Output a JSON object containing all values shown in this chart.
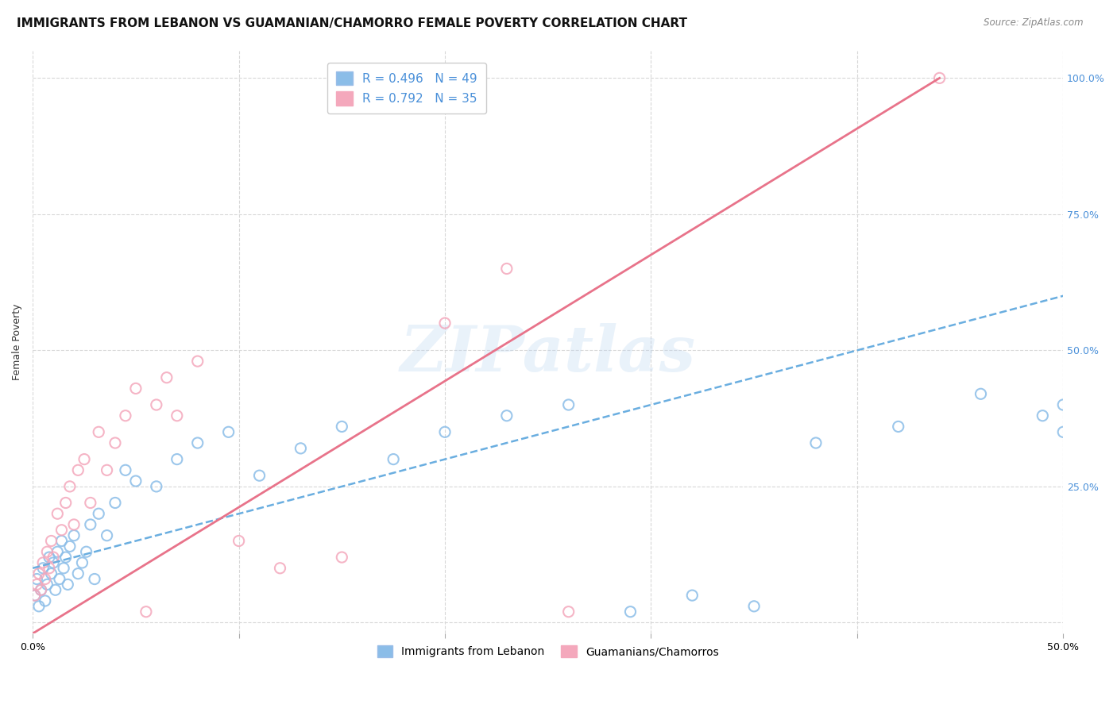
{
  "title": "IMMIGRANTS FROM LEBANON VS GUAMANIAN/CHAMORRO FEMALE POVERTY CORRELATION CHART",
  "source": "Source: ZipAtlas.com",
  "ylabel": "Female Poverty",
  "xlim": [
    0.0,
    0.5
  ],
  "ylim": [
    -0.02,
    1.05
  ],
  "legend_label1": "R = 0.496   N = 49",
  "legend_label2": "R = 0.792   N = 35",
  "legend_label1_short": "Immigrants from Lebanon",
  "legend_label2_short": "Guamanians/Chamorros",
  "color_blue": "#8bbde8",
  "color_pink": "#f4a8bc",
  "color_blue_line": "#6aaee0",
  "color_pink_line": "#e8738a",
  "color_blue_text": "#4a90d9",
  "color_pink_text": "#e87090",
  "watermark": "ZIPatlas",
  "blue_scatter_x": [
    0.001,
    0.002,
    0.003,
    0.004,
    0.005,
    0.006,
    0.007,
    0.008,
    0.009,
    0.01,
    0.011,
    0.012,
    0.013,
    0.014,
    0.015,
    0.016,
    0.017,
    0.018,
    0.02,
    0.022,
    0.024,
    0.026,
    0.028,
    0.03,
    0.032,
    0.036,
    0.04,
    0.045,
    0.05,
    0.06,
    0.07,
    0.08,
    0.095,
    0.11,
    0.13,
    0.15,
    0.175,
    0.2,
    0.23,
    0.26,
    0.29,
    0.32,
    0.35,
    0.38,
    0.42,
    0.46,
    0.49,
    0.5,
    0.5
  ],
  "blue_scatter_y": [
    0.05,
    0.08,
    0.03,
    0.06,
    0.1,
    0.04,
    0.07,
    0.12,
    0.09,
    0.11,
    0.06,
    0.13,
    0.08,
    0.15,
    0.1,
    0.12,
    0.07,
    0.14,
    0.16,
    0.09,
    0.11,
    0.13,
    0.18,
    0.08,
    0.2,
    0.16,
    0.22,
    0.28,
    0.26,
    0.25,
    0.3,
    0.33,
    0.35,
    0.27,
    0.32,
    0.36,
    0.3,
    0.35,
    0.38,
    0.4,
    0.02,
    0.05,
    0.03,
    0.33,
    0.36,
    0.42,
    0.38,
    0.35,
    0.4
  ],
  "pink_scatter_x": [
    0.001,
    0.002,
    0.003,
    0.004,
    0.005,
    0.006,
    0.007,
    0.008,
    0.009,
    0.01,
    0.012,
    0.014,
    0.016,
    0.018,
    0.02,
    0.022,
    0.025,
    0.028,
    0.032,
    0.036,
    0.04,
    0.045,
    0.05,
    0.055,
    0.06,
    0.065,
    0.07,
    0.08,
    0.1,
    0.12,
    0.15,
    0.2,
    0.23,
    0.26,
    0.44
  ],
  "pink_scatter_y": [
    0.05,
    0.07,
    0.09,
    0.06,
    0.11,
    0.08,
    0.13,
    0.1,
    0.15,
    0.12,
    0.2,
    0.17,
    0.22,
    0.25,
    0.18,
    0.28,
    0.3,
    0.22,
    0.35,
    0.28,
    0.33,
    0.38,
    0.43,
    0.02,
    0.4,
    0.45,
    0.38,
    0.48,
    0.15,
    0.1,
    0.12,
    0.55,
    0.65,
    0.02,
    1.0
  ],
  "blue_line_x": [
    0.0,
    0.5
  ],
  "blue_line_y": [
    0.1,
    0.6
  ],
  "pink_line_x": [
    0.0,
    0.44
  ],
  "pink_line_y": [
    -0.02,
    1.0
  ],
  "background_color": "#ffffff",
  "grid_color": "#d8d8d8",
  "title_fontsize": 11,
  "axis_label_fontsize": 9,
  "tick_fontsize": 9,
  "right_ytick_color": "#4a90d9",
  "xtick_positions": [
    0.0,
    0.1,
    0.2,
    0.3,
    0.4,
    0.5
  ],
  "ytick_positions": [
    0.0,
    0.25,
    0.5,
    0.75,
    1.0
  ]
}
